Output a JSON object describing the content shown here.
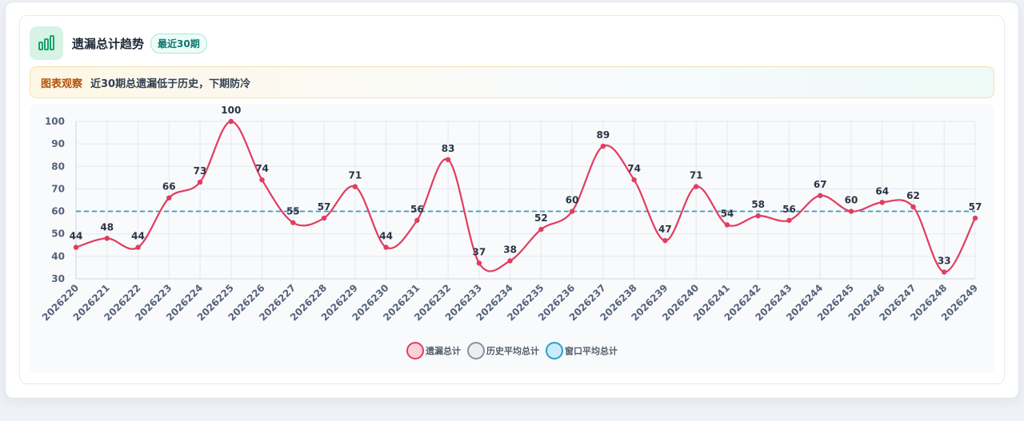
{
  "header": {
    "title": "遗漏总计趋势",
    "badge": "最近30期"
  },
  "insight": {
    "tag": "图表观察",
    "text": "近30期总遗漏低于历史，下期防冷"
  },
  "colors": {
    "line": "#e23d5e",
    "history": "#5b8ba8",
    "window": "#2e9ec5"
  },
  "legend": [
    {
      "label": "遗漏总计",
      "bg": "#fbd1d9",
      "border": "#e23d5e"
    },
    {
      "label": "历史平均总计",
      "bg": "#eceef2",
      "border": "#8a90a0"
    },
    {
      "label": "窗口平均总计",
      "bg": "#c8ecf7",
      "border": "#2e9ec5"
    }
  ],
  "chart_data": {
    "type": "line",
    "x": [
      "2026220",
      "2026221",
      "2026222",
      "2026223",
      "2026224",
      "2026225",
      "2026226",
      "2026227",
      "2026228",
      "2026229",
      "2026230",
      "2026231",
      "2026232",
      "2026233",
      "2026234",
      "2026235",
      "2026236",
      "2026237",
      "2026238",
      "2026239",
      "2026240",
      "2026241",
      "2026242",
      "2026243",
      "2026244",
      "2026245",
      "2026246",
      "2026247",
      "2026248",
      "2026249"
    ],
    "series": [
      {
        "name": "遗漏总计",
        "values": [
          44,
          48,
          44,
          66,
          73,
          100,
          74,
          55,
          57,
          71,
          44,
          56,
          83,
          37,
          38,
          52,
          60,
          89,
          74,
          47,
          71,
          54,
          58,
          56,
          67,
          60,
          64,
          62,
          33,
          57
        ]
      },
      {
        "name": "历史平均总计",
        "values": [
          60,
          60,
          60,
          60,
          60,
          60,
          60,
          60,
          60,
          60,
          60,
          60,
          60,
          60,
          60,
          60,
          60,
          60,
          60,
          60,
          60,
          60,
          60,
          60,
          60,
          60,
          60,
          60,
          60,
          60
        ]
      },
      {
        "name": "窗口平均总计",
        "values": [
          60,
          60,
          60,
          60,
          60,
          60,
          60,
          60,
          60,
          60,
          60,
          60,
          60,
          60,
          60,
          60,
          60,
          60,
          60,
          60,
          60,
          60,
          60,
          60,
          60,
          60,
          60,
          60,
          60,
          60
        ]
      }
    ],
    "ylim": [
      30,
      100
    ],
    "yticks": [
      30,
      40,
      50,
      60,
      70,
      80,
      90,
      100
    ],
    "grid": true,
    "legend_position": "bottom"
  }
}
